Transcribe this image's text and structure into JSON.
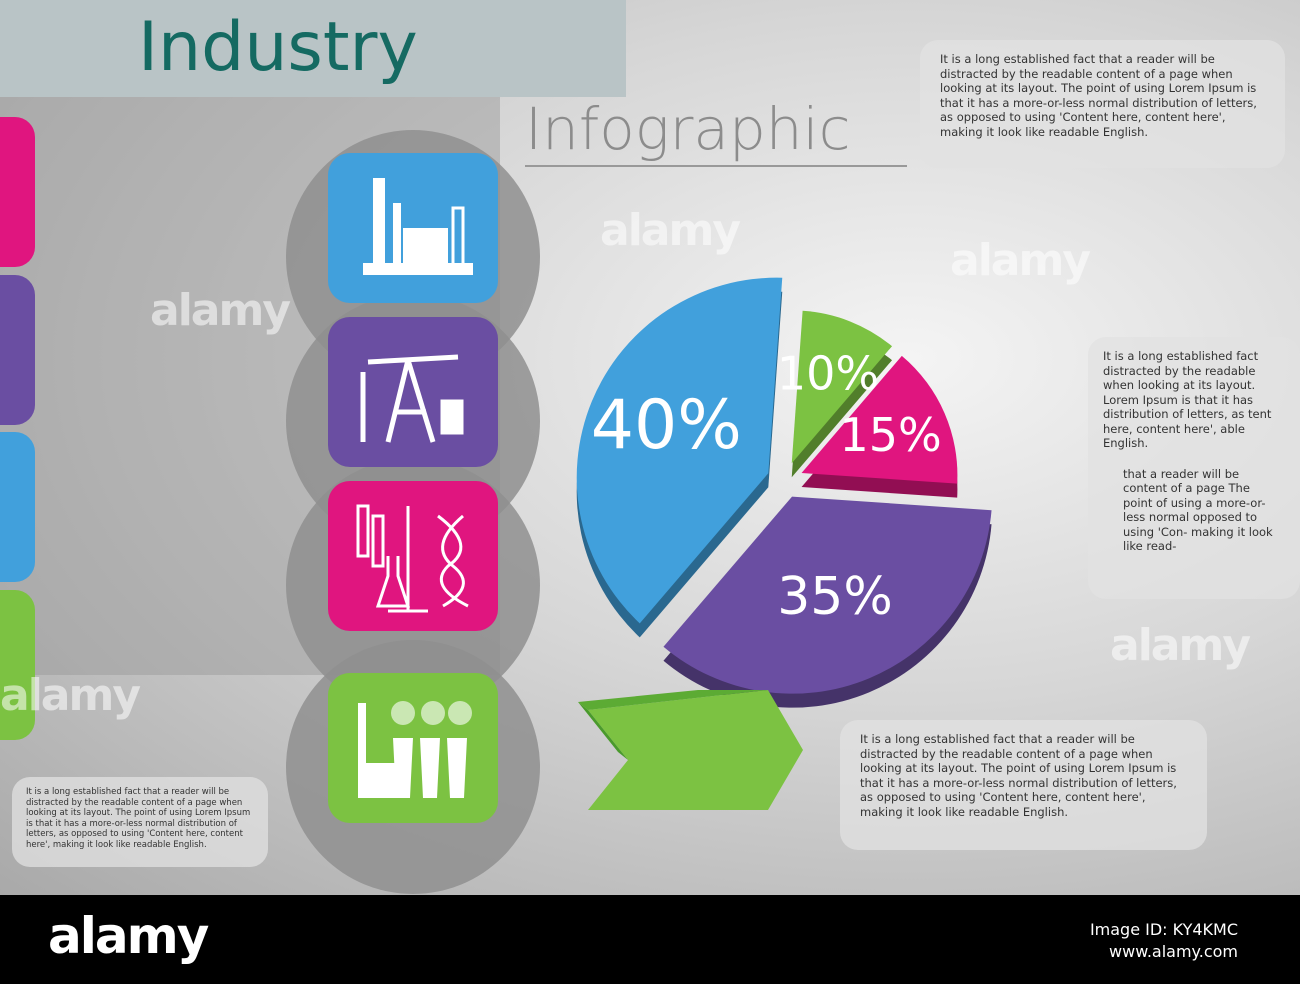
{
  "header": {
    "title": "Industry",
    "subtitle": "Infographic"
  },
  "colors": {
    "blue": "#41a0dc",
    "green": "#7cc242",
    "magenta": "#e0157f",
    "purple": "#6a4ea2",
    "title": "#156a62"
  },
  "tiles": [
    {
      "icon": "factory-icon",
      "color": "#41a0dc"
    },
    {
      "icon": "oil-pump-icon",
      "color": "#6a4ea2"
    },
    {
      "icon": "laboratory-dna-icon",
      "color": "#e0157f"
    },
    {
      "icon": "power-plant-icon",
      "color": "#7cc242"
    }
  ],
  "text_blocks": {
    "top_right": "It is a long established fact that a reader will be distracted by the readable content of a page when looking at its layout. The point of using Lorem Ipsum is that it has a more-or-less normal distribution of letters, as opposed to using 'Content here, content here', making it look like readable English.",
    "right_a": "It is a long established fact distracted by the readable when looking at its layout. Lorem Ipsum is that it has distribution of letters, as tent here, content here', able English.",
    "right_b": "that a reader will be content of a page The point of using a more-or-less normal opposed to using 'Con- making it look like read-",
    "bottom_center": "It is a long established fact that a reader will be distracted by the readable content of a page when looking at its layout. The point of using Lorem Ipsum is that it has a more-or-less normal distribution of letters, as opposed to using 'Content here, content here', making it look like readable English.",
    "bottom_left": "It is a long established fact that a reader will be distracted by the readable content of a page when looking at its layout. The point of using Lorem Ipsum is that it has a more-or-less normal distribution of letters, as opposed to using 'Content here, content here', making it look like readable English."
  },
  "chart_data": {
    "type": "pie",
    "categories": [
      "",
      "",
      "",
      ""
    ],
    "values": [
      10,
      15,
      35,
      40
    ],
    "labels": [
      "10%",
      "15%",
      "35%",
      "40%"
    ],
    "colors": [
      "#7cc242",
      "#e0157f",
      "#6a4ea2",
      "#41a0dc"
    ],
    "exploded": true,
    "legend": "none"
  },
  "footer": {
    "logo": "alamy",
    "image_id": "Image ID: KY4KMC",
    "url": "www.alamy.com"
  },
  "watermark": "alamy"
}
